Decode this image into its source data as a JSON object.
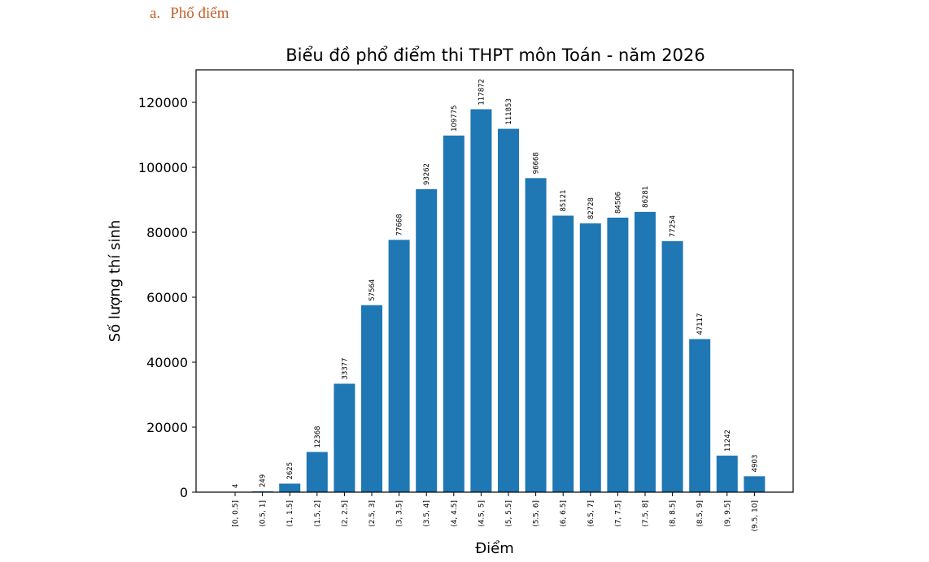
{
  "heading": {
    "marker": "a.",
    "text": "Phổ điểm"
  },
  "colors": {
    "bar": "#1f77b4",
    "heading": "#c0622a"
  },
  "chart_data": {
    "type": "bar",
    "title": "Biểu đồ phổ điểm thi THPT môn Toán - năm 2026",
    "xlabel": "Điểm",
    "ylabel": "Số lượng thí sinh",
    "ylim": [
      0,
      130000
    ],
    "yticks": [
      0,
      20000,
      40000,
      60000,
      80000,
      100000,
      120000
    ],
    "grid": false,
    "categories": [
      "[0, 0.5]",
      "(0.5, 1]",
      "(1, 1.5]",
      "(1.5, 2]",
      "(2, 2.5]",
      "(2.5, 3]",
      "(3, 3.5]",
      "(3.5, 4]",
      "(4, 4.5]",
      "(4.5, 5]",
      "(5, 5.5]",
      "(5.5, 6]",
      "(6, 6.5]",
      "(6.5, 7]",
      "(7, 7.5]",
      "(7.5, 8]",
      "(8, 8.5]",
      "(8.5, 9]",
      "(9, 9.5]",
      "(9.5, 10]"
    ],
    "values": [
      4,
      249,
      2625,
      12368,
      33377,
      57564,
      77668,
      93262,
      109775,
      117872,
      111853,
      96668,
      85121,
      82728,
      84506,
      86281,
      77254,
      47117,
      11242,
      4903
    ]
  }
}
